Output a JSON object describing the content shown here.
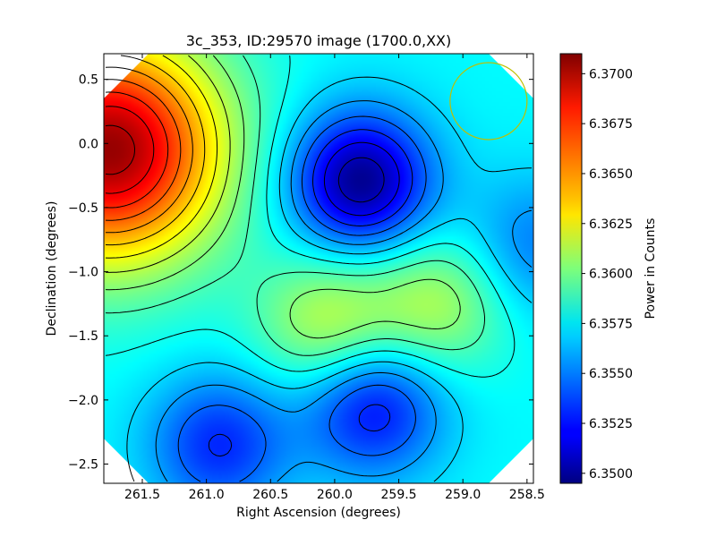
{
  "chart_data": {
    "type": "heatmap",
    "title": "3c_353, ID:29570 image (1700.0,XX)",
    "xlabel": "Right Ascension (degrees)",
    "ylabel": "Declination (degrees)",
    "xlim": [
      261.8,
      258.45
    ],
    "ylim": [
      -2.65,
      0.7
    ],
    "x_ticks": [
      "261.5",
      "261.0",
      "260.5",
      "260.0",
      "259.5",
      "259.0",
      "258.5"
    ],
    "y_ticks": [
      "0.5",
      "0.0",
      "−0.5",
      "−1.0",
      "−1.5",
      "−2.0",
      "−2.5"
    ],
    "colorbar": {
      "label": "Power in Counts",
      "range": [
        6.3495,
        6.371
      ],
      "ticks": [
        "6.3500",
        "6.3525",
        "6.3550",
        "6.3575",
        "6.3600",
        "6.3625",
        "6.3650",
        "6.3675",
        "6.3700"
      ],
      "colormap": "jet"
    },
    "grid": false,
    "features": [
      {
        "kind": "maximum",
        "ra": 261.75,
        "dec": -0.05,
        "value": 6.3705
      },
      {
        "kind": "minimum",
        "ra": 259.8,
        "dec": -0.3,
        "value": 6.3497
      },
      {
        "kind": "minimum",
        "ra": 260.9,
        "dec": -2.35,
        "value": 6.353
      },
      {
        "kind": "minimum",
        "ra": 259.7,
        "dec": -2.05,
        "value": 6.3522
      },
      {
        "kind": "minimum",
        "ra": 258.45,
        "dec": -0.8,
        "value": 6.3548
      },
      {
        "kind": "local-max",
        "ra": 260.05,
        "dec": -1.4,
        "value": 6.3616
      },
      {
        "kind": "local-max",
        "ra": 259.2,
        "dec": -1.25,
        "value": 6.3612
      },
      {
        "kind": "beam-circle",
        "ra": 258.8,
        "dec": 0.33,
        "radius_deg": 0.3,
        "color": "#bfbf00"
      }
    ]
  }
}
